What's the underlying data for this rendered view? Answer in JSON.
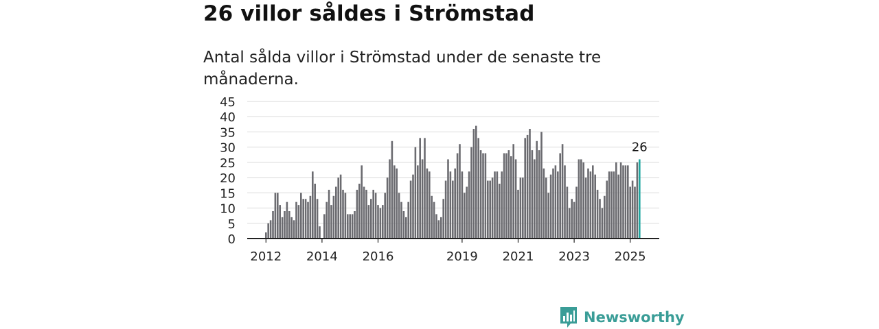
{
  "title": "26 villor såldes i Strömstad",
  "subtitle": "Antal sålda villor i Strömstad under de senaste tre månaderna.",
  "brand": {
    "name": "Newsworthy",
    "color": "#3a9d97"
  },
  "colors": {
    "bar": "#6b6b70",
    "highlight": "#1fa6a0",
    "grid": "#d9d9d9",
    "axis": "#222222"
  },
  "chart_data": {
    "type": "bar",
    "title": "",
    "xlabel": "",
    "ylabel": "",
    "ylim": [
      0,
      45
    ],
    "yticks": [
      0,
      5,
      10,
      15,
      20,
      25,
      30,
      35,
      40,
      45
    ],
    "xtick_labels": [
      "2012",
      "2014",
      "2016",
      "2019",
      "2021",
      "2023",
      "2025"
    ],
    "xtick_months": [
      "2012-01",
      "2014-01",
      "2016-01",
      "2019-01",
      "2021-01",
      "2023-01",
      "2025-01"
    ],
    "start_month": "2012-01",
    "grid": true,
    "highlight_label": "26",
    "values": [
      2,
      5,
      6,
      9,
      15,
      15,
      11,
      7,
      9,
      12,
      9,
      7,
      6,
      12,
      11,
      15,
      13,
      13,
      12,
      14,
      22,
      18,
      13,
      4,
      0,
      8,
      12,
      16,
      11,
      14,
      17,
      20,
      21,
      16,
      15,
      8,
      8,
      8,
      9,
      16,
      18,
      24,
      17,
      16,
      11,
      13,
      16,
      15,
      11,
      10,
      11,
      15,
      20,
      26,
      32,
      24,
      23,
      15,
      12,
      9,
      7,
      12,
      19,
      21,
      30,
      24,
      33,
      26,
      33,
      23,
      22,
      14,
      12,
      8,
      6,
      7,
      13,
      19,
      26,
      22,
      19,
      23,
      28,
      31,
      22,
      15,
      17,
      22,
      30,
      36,
      37,
      33,
      29,
      28,
      28,
      19,
      19,
      20,
      22,
      22,
      18,
      22,
      28,
      28,
      29,
      27,
      31,
      26,
      16,
      20,
      20,
      33,
      34,
      36,
      29,
      26,
      32,
      29,
      35,
      23,
      20,
      15,
      21,
      23,
      24,
      22,
      28,
      31,
      24,
      17,
      10,
      13,
      12,
      17,
      26,
      26,
      25,
      20,
      23,
      22,
      24,
      21,
      16,
      13,
      10,
      14,
      19,
      22,
      22,
      22,
      25,
      21,
      25,
      24,
      24,
      24,
      17,
      19,
      17,
      25,
      26
    ]
  }
}
